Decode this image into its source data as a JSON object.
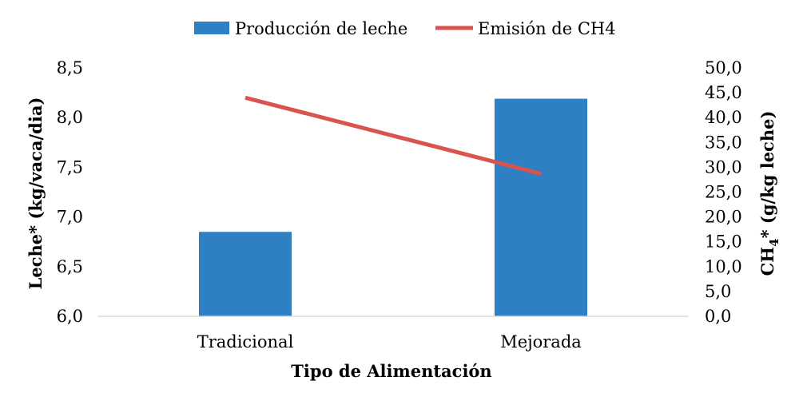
{
  "chart_data": {
    "type": "bar+line",
    "categories": [
      "Tradicional",
      "Mejorada"
    ],
    "series": [
      {
        "name": "Producción de leche",
        "type": "bar",
        "axis": "left",
        "values": [
          6.85,
          8.19
        ],
        "color": "#2E80C2"
      },
      {
        "name": "Emisión de CH4",
        "type": "line",
        "axis": "right",
        "values": [
          44.0,
          28.7
        ],
        "color": "#D9534F"
      }
    ],
    "xlabel": "Tipo de Alimentación",
    "ylabel_left": "Leche* (kg/vaca/dia)",
    "ylabel_right": {
      "prefix": "CH",
      "sub": "4",
      "suffix": "* (g/kg leche)"
    },
    "ylim_left": [
      6.0,
      8.5
    ],
    "yticks_left": [
      "6,0",
      "6,5",
      "7,0",
      "7,5",
      "8,0",
      "8,5"
    ],
    "ylim_right": [
      0,
      50
    ],
    "yticks_right": [
      "0,0",
      "5,0",
      "10,0",
      "15,0",
      "20,0",
      "25,0",
      "30,0",
      "35,0",
      "40,0",
      "45,0",
      "50,0"
    ],
    "grid": false,
    "legend": "top-center"
  }
}
